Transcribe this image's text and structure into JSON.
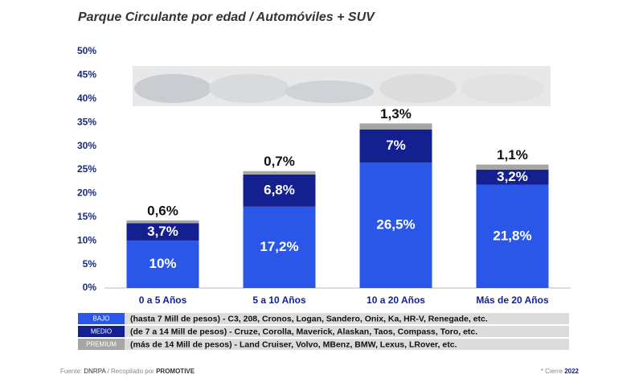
{
  "chart_data": {
    "type": "stacked_bar",
    "title": "Parque Circulante por edad / Automóviles + SUV",
    "categories": [
      "0 a 5 Años",
      "5 a 10 Años",
      "10 a 20 Años",
      "Más de 20 Años"
    ],
    "series": [
      {
        "name": "BAJO",
        "color": "#2b57e8",
        "description": "(hasta 7 Mill de pesos) - C3, 208, Cronos, Logan, Sandero, Onix, Ka, HR-V, Renegade, etc.",
        "values": [
          10,
          17.2,
          26.5,
          21.8
        ],
        "value_labels": [
          "10%",
          "17,2%",
          "26,5%",
          "21,8%"
        ]
      },
      {
        "name": "MEDIO",
        "color": "#14208f",
        "description": "(de 7 a 14 Mill de pesos) - Cruze, Corolla, Maverick, Alaskan, Taos, Compass, Toro, etc.",
        "values": [
          3.7,
          6.8,
          7,
          3.2
        ],
        "value_labels": [
          "3,7%",
          "6,8%",
          "7%",
          "3,2%"
        ]
      },
      {
        "name": "PREMIUM",
        "color": "#a6a6a6",
        "description": "(más de 14 Mill de pesos) - Land Cruiser, Volvo, MBenz, BMW, Lexus, LRover, etc.",
        "values": [
          0.6,
          0.7,
          1.3,
          1.1
        ],
        "value_labels": [
          "0,6%",
          "0,7%",
          "1,3%",
          "1,1%"
        ]
      }
    ],
    "ylim": [
      0,
      50
    ],
    "yticks": [
      {
        "value": 0,
        "label": "0%"
      },
      {
        "value": 5,
        "label": "5%"
      },
      {
        "value": 10,
        "label": "10%"
      },
      {
        "value": 15,
        "label": "15%"
      },
      {
        "value": 20,
        "label": "20%"
      },
      {
        "value": 25,
        "label": "25%"
      },
      {
        "value": 30,
        "label": "30%"
      },
      {
        "value": 35,
        "label": "35%"
      },
      {
        "value": 40,
        "label": "40%"
      },
      {
        "value": 45,
        "label": "45%"
      },
      {
        "value": 50,
        "label": "50%"
      }
    ],
    "grid": false,
    "source_label": "Fuente:",
    "source": "DNRPA",
    "compiled_label": "/ Recopilado por",
    "compiled_by": "PROMOTIVE",
    "note_label": "* Cierre",
    "note_year": "2022"
  }
}
